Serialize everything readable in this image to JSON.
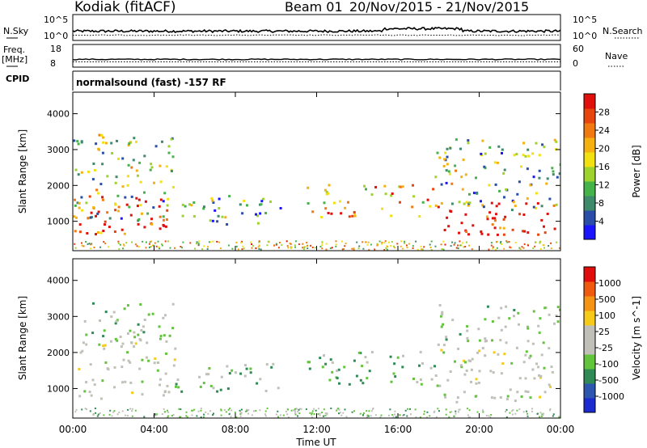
{
  "header": {
    "station": "Kodiak (fitACF)",
    "beam": "Beam 01",
    "date_range": "20/Nov/2015 - 21/Nov/2015"
  },
  "status_panels": {
    "nsky_label": "N.Sky",
    "nsky_ticks": [
      "10^5",
      "10^0"
    ],
    "nsearch_label": "N.Search",
    "nsearch_ticks": [
      "10^5",
      "10^0"
    ],
    "freq_label": "Freq.",
    "freq_unit": "[MHz]",
    "freq_ticks": [
      "18",
      "8"
    ],
    "nave_label": "Nave",
    "nave_ticks": [
      "60",
      "0"
    ],
    "cpid_label": "CPID",
    "cpid_text": "normalsound (fast) -157 RF"
  },
  "chart_data": [
    {
      "type": "heatmap",
      "title": "",
      "xlabel": "",
      "ylabel": "Slant Range [km]",
      "xlim": [
        "00:00",
        "24:00"
      ],
      "ylim": [
        180,
        4600
      ],
      "yticks": [
        1000,
        2000,
        3000,
        4000
      ],
      "colorbar": {
        "label": "Power [dB]",
        "ticks": [
          4,
          8,
          12,
          16,
          20,
          24,
          28
        ],
        "colors": [
          "#1a14ff",
          "#2a4ea8",
          "#3f8a6a",
          "#46b34a",
          "#9ed22c",
          "#f2e010",
          "#f5b10f",
          "#f07a10",
          "#e8450e",
          "#e0100c"
        ]
      },
      "regions": [
        {
          "time_h": [
            0.0,
            4.8
          ],
          "range_km": [
            600,
            1700
          ],
          "value": 26
        },
        {
          "time_h": [
            0.0,
            5.0
          ],
          "range_km": [
            1000,
            3400
          ],
          "value": 14
        },
        {
          "time_h": [
            5.0,
            10.2
          ],
          "range_km": [
            900,
            1700
          ],
          "value": 12
        },
        {
          "time_h": [
            11.5,
            17.8
          ],
          "range_km": [
            1100,
            2000
          ],
          "value": 20
        },
        {
          "time_h": [
            17.8,
            24.0
          ],
          "range_km": [
            600,
            1500
          ],
          "value": 27
        },
        {
          "time_h": [
            17.8,
            24.0
          ],
          "range_km": [
            1300,
            3300
          ],
          "value": 13
        }
      ]
    },
    {
      "type": "heatmap",
      "title": "",
      "xlabel": "Time UT",
      "ylabel": "Slant Range [km]",
      "xticks": [
        "00:00",
        "04:00",
        "08:00",
        "12:00",
        "16:00",
        "20:00",
        "00:00"
      ],
      "ylim": [
        180,
        4600
      ],
      "yticks": [
        1000,
        2000,
        3000,
        4000
      ],
      "colorbar": {
        "label": "Velocity [m s^-1]",
        "ticks": [
          1000,
          500,
          100,
          25,
          -25,
          -100,
          -500,
          -1000
        ],
        "colors": [
          "#1c2bd0",
          "#2c56b0",
          "#2f8a55",
          "#62c43a",
          "#c0c0b8",
          "#c0c0b8",
          "#f5ca18",
          "#f59314",
          "#ef5a0e",
          "#e10d0c"
        ]
      },
      "regions": [
        {
          "time_h": [
            0.0,
            5.0
          ],
          "range_km": [
            700,
            2300
          ],
          "value": 0
        },
        {
          "time_h": [
            0.0,
            5.0
          ],
          "range_km": [
            2300,
            3400
          ],
          "value": -250
        },
        {
          "time_h": [
            5.0,
            10.2
          ],
          "range_km": [
            900,
            1700
          ],
          "value": -300
        },
        {
          "time_h": [
            11.5,
            17.8
          ],
          "range_km": [
            1100,
            2000
          ],
          "value": -300
        },
        {
          "time_h": [
            17.8,
            24.0
          ],
          "range_km": [
            600,
            2200
          ],
          "value": 0
        },
        {
          "time_h": [
            17.8,
            24.0
          ],
          "range_km": [
            2200,
            3300
          ],
          "value": -200
        }
      ]
    }
  ]
}
